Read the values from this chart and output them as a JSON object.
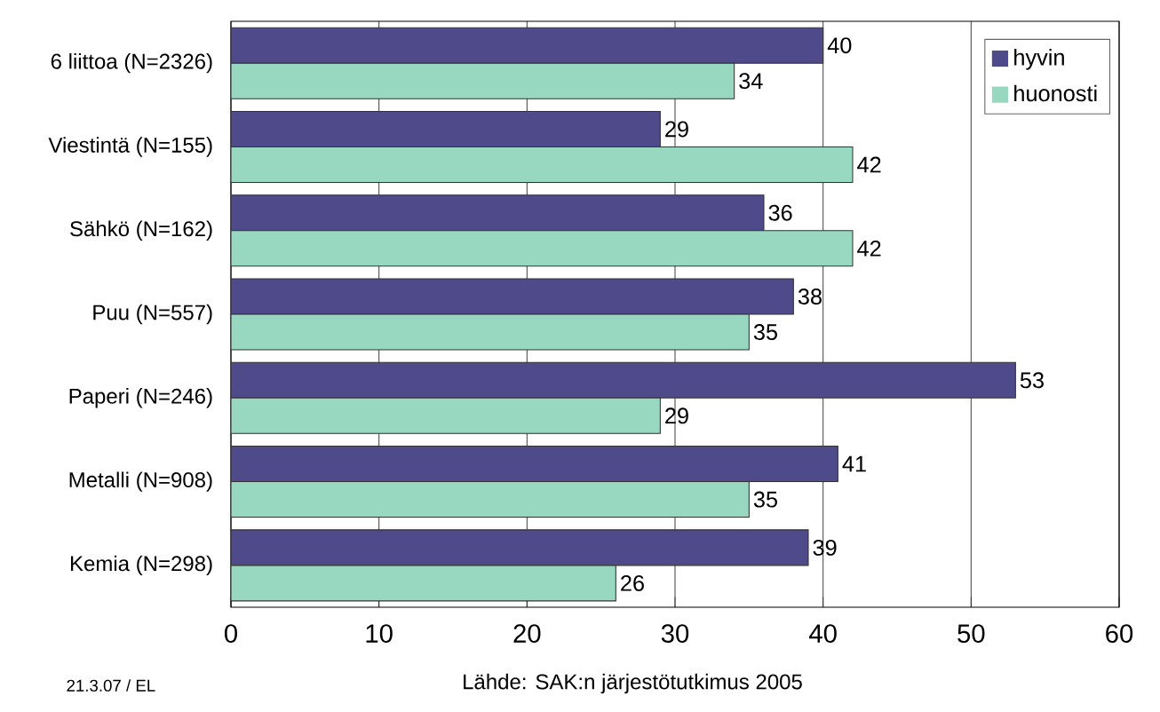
{
  "chart_data": {
    "type": "bar",
    "orientation": "horizontal",
    "categories": [
      "6 liittoa (N=2326)",
      "Viestintä (N=155)",
      "Sähkö (N=162)",
      "Puu (N=557)",
      "Paperi (N=246)",
      "Metalli (N=908)",
      "Kemia (N=298)"
    ],
    "series": [
      {
        "name": "hyvin",
        "color": "#4f4a8a",
        "values": [
          40,
          29,
          36,
          38,
          53,
          41,
          39
        ]
      },
      {
        "name": "huonosti",
        "color": "#98d7c0",
        "values": [
          34,
          42,
          42,
          35,
          29,
          35,
          26
        ]
      }
    ],
    "xlim": [
      0,
      60
    ],
    "xticks": [
      0,
      10,
      20,
      30,
      40,
      50,
      60
    ],
    "grid": "x",
    "legend": "top right",
    "data_labels": true,
    "annotations": [
      "21.3.07 / EL",
      "Lähde: SAK:n järjestötutkimus 2005"
    ]
  }
}
